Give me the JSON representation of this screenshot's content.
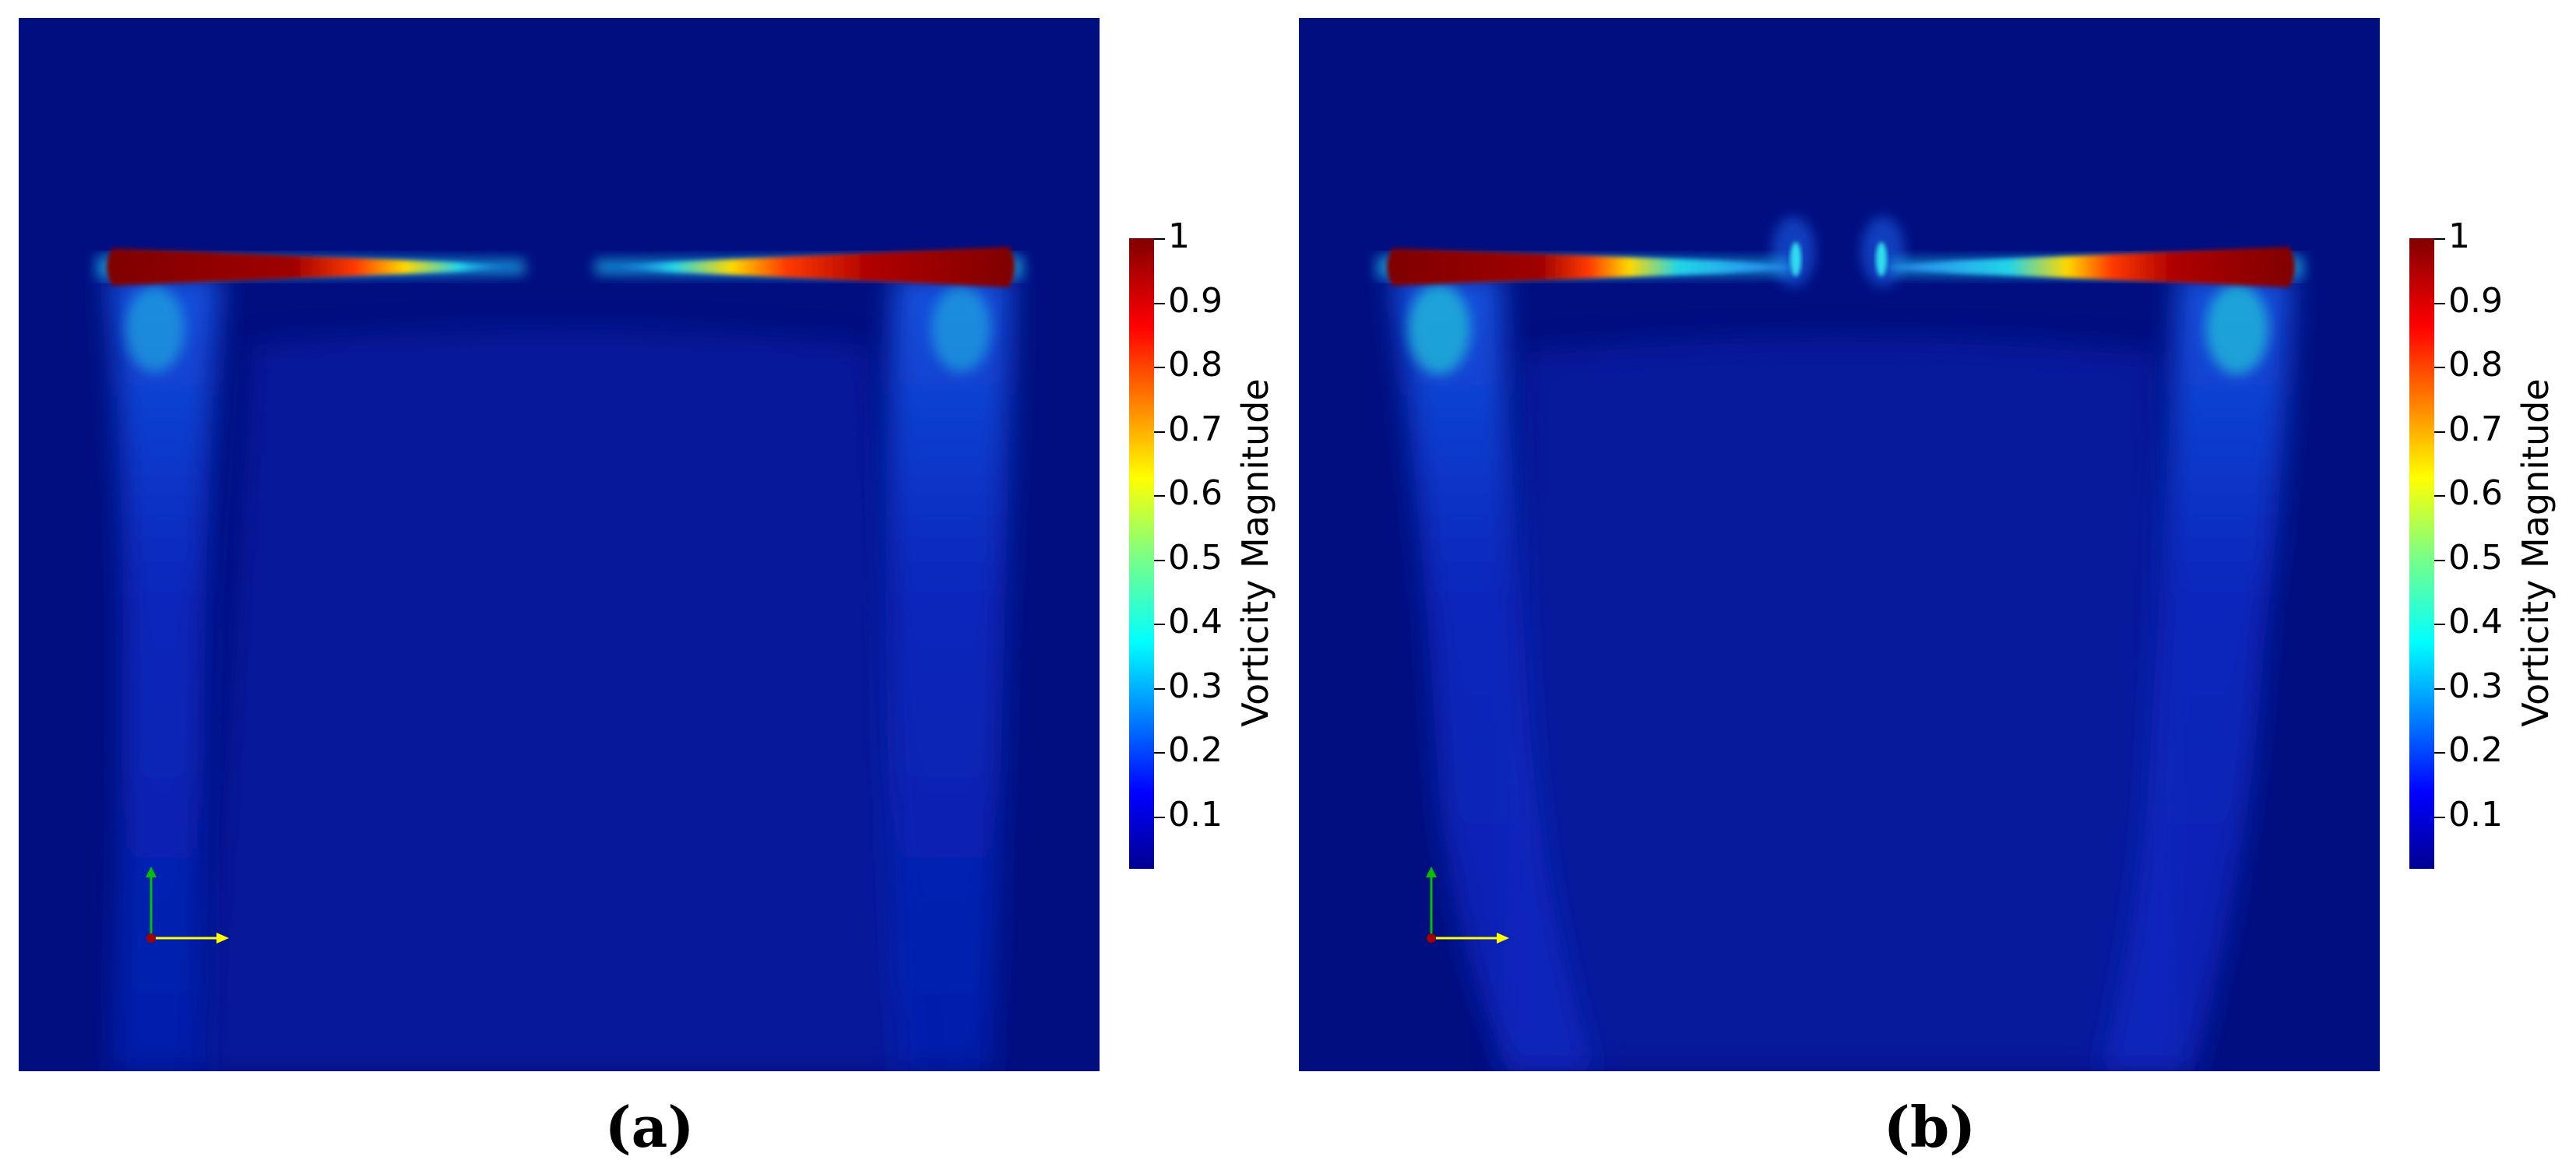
{
  "colorbar": {
    "title": "Vorticity Magnitude",
    "ticks": [
      "1",
      "0.9",
      "0.8",
      "0.7",
      "0.6",
      "0.5",
      "0.4",
      "0.3",
      "0.2",
      "0.1"
    ],
    "range": [
      0,
      1
    ]
  },
  "panels": [
    {
      "id": "a",
      "caption": "(a)"
    },
    {
      "id": "b",
      "caption": "(b)"
    }
  ],
  "colors": {
    "background": "#000e7f",
    "core": "#7f0000",
    "hot": "#e00000",
    "mid": "#ffd800",
    "cool": "#22d5e8",
    "wake": "#0a2fd0"
  }
}
